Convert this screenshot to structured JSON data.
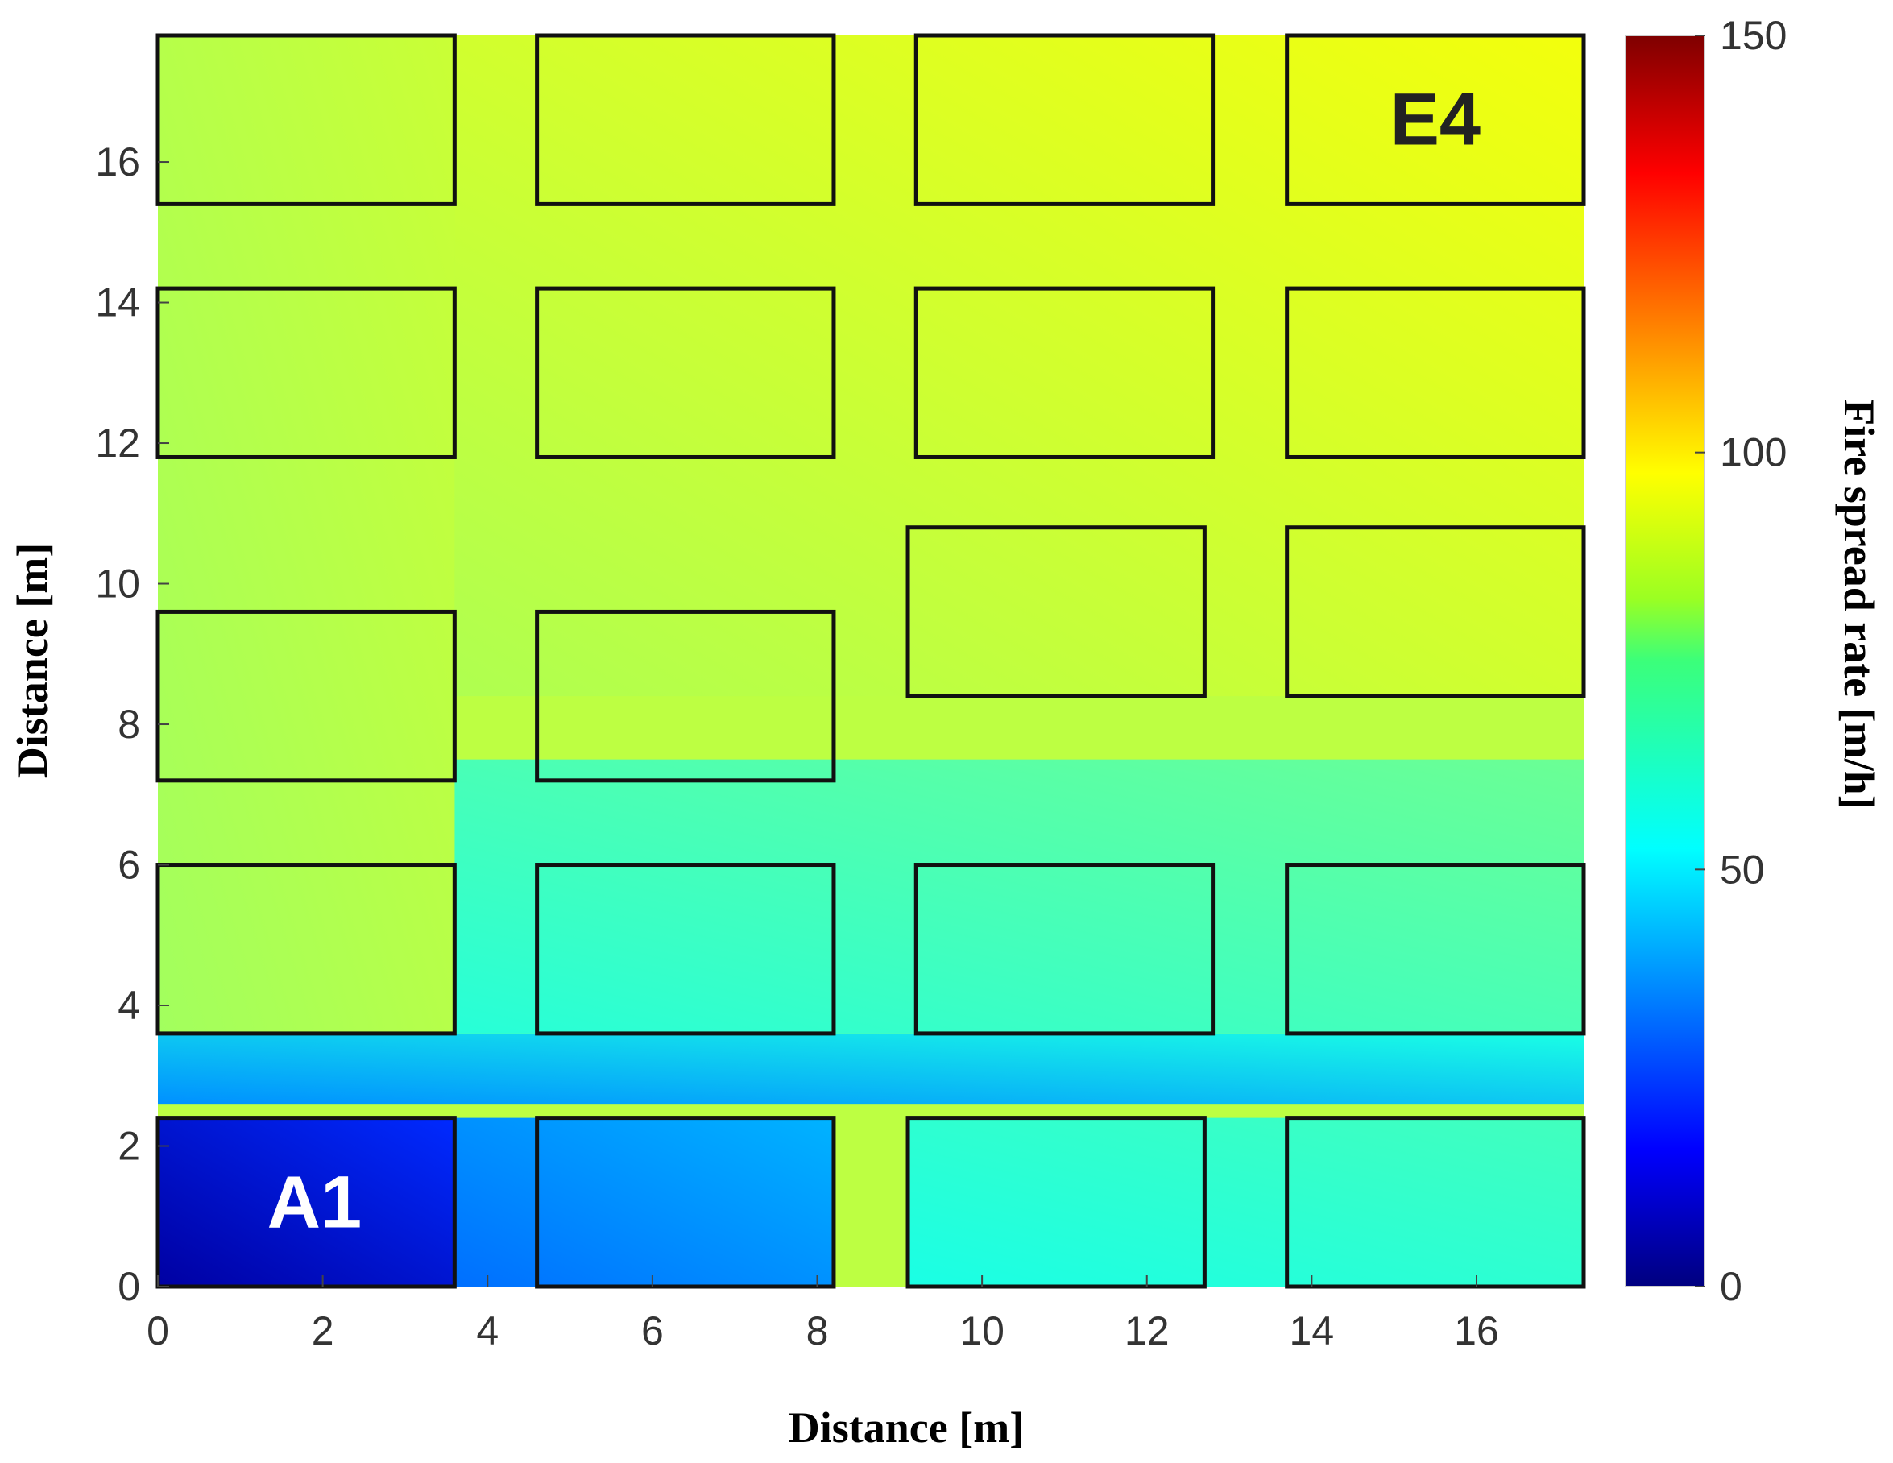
{
  "chart_data": {
    "type": "heatmap",
    "title": "",
    "xlabel": "Distance [m]",
    "ylabel": "Distance [m]",
    "colorbar_label": "Fire spread rate [m/h]",
    "xlim": [
      0,
      17.3
    ],
    "ylim": [
      0,
      17.8
    ],
    "clim": [
      0,
      150
    ],
    "colormap": "jet",
    "grid": false,
    "x_ticks": [
      0,
      2,
      4,
      6,
      8,
      10,
      12,
      14,
      16
    ],
    "y_ticks": [
      0,
      2,
      4,
      6,
      8,
      10,
      12,
      14,
      16
    ],
    "colorbar_ticks": [
      0,
      50,
      100,
      150
    ],
    "field_description_regions": [
      {
        "x": [
          0,
          3.6
        ],
        "y": [
          0,
          2.4
        ],
        "value_range": [
          5,
          25
        ]
      },
      {
        "x": [
          3.6,
          8.2
        ],
        "y": [
          0,
          2.4
        ],
        "value_range": [
          35,
          45
        ]
      },
      {
        "x": [
          9.1,
          17.3
        ],
        "y": [
          0,
          2.4
        ],
        "value_range": [
          60,
          66
        ]
      },
      {
        "x": [
          0,
          17.3
        ],
        "y": [
          2.6,
          3.6
        ],
        "value_range": [
          40,
          60
        ]
      },
      {
        "x": [
          3.6,
          17.3
        ],
        "y": [
          3.6,
          7.5
        ],
        "value_range": [
          62,
          72
        ]
      },
      {
        "x": [
          0,
          3.6
        ],
        "y": [
          3.6,
          17.8
        ],
        "value_range": [
          80,
          86
        ]
      },
      {
        "x": [
          3.6,
          17.3
        ],
        "y": [
          8.4,
          17.8
        ],
        "value_range": [
          82,
          92
        ]
      }
    ],
    "buildings": [
      {
        "x": [
          0,
          3.6
        ],
        "y": [
          0,
          2.4
        ]
      },
      {
        "x": [
          4.6,
          8.2
        ],
        "y": [
          0,
          2.4
        ]
      },
      {
        "x": [
          9.1,
          12.7
        ],
        "y": [
          0,
          2.4
        ]
      },
      {
        "x": [
          13.7,
          17.3
        ],
        "y": [
          0,
          2.4
        ]
      },
      {
        "x": [
          0,
          3.6
        ],
        "y": [
          3.6,
          6.0
        ]
      },
      {
        "x": [
          4.6,
          8.2
        ],
        "y": [
          3.6,
          6.0
        ]
      },
      {
        "x": [
          9.2,
          12.8
        ],
        "y": [
          3.6,
          6.0
        ]
      },
      {
        "x": [
          13.7,
          17.3
        ],
        "y": [
          3.6,
          6.0
        ]
      },
      {
        "x": [
          0,
          3.6
        ],
        "y": [
          7.2,
          9.6
        ]
      },
      {
        "x": [
          4.6,
          8.2
        ],
        "y": [
          7.2,
          9.6
        ]
      },
      {
        "x": [
          9.1,
          12.7
        ],
        "y": [
          8.4,
          10.8
        ]
      },
      {
        "x": [
          13.7,
          17.3
        ],
        "y": [
          8.4,
          10.8
        ]
      },
      {
        "x": [
          0,
          3.6
        ],
        "y": [
          11.8,
          14.2
        ]
      },
      {
        "x": [
          4.6,
          8.2
        ],
        "y": [
          11.8,
          14.2
        ]
      },
      {
        "x": [
          9.2,
          12.8
        ],
        "y": [
          11.8,
          14.2
        ]
      },
      {
        "x": [
          13.7,
          17.3
        ],
        "y": [
          11.8,
          14.2
        ]
      },
      {
        "x": [
          0,
          3.6
        ],
        "y": [
          15.4,
          17.8
        ]
      },
      {
        "x": [
          4.6,
          8.2
        ],
        "y": [
          15.4,
          17.8
        ]
      },
      {
        "x": [
          9.2,
          12.8
        ],
        "y": [
          15.4,
          17.8
        ]
      },
      {
        "x": [
          13.7,
          17.3
        ],
        "y": [
          15.4,
          17.8
        ]
      }
    ],
    "annotations": [
      {
        "text": "A1",
        "x": 1.9,
        "y": 1.2,
        "color": "#ffffff"
      },
      {
        "text": "E4",
        "x": 15.5,
        "y": 16.6,
        "color": "#222222"
      }
    ]
  }
}
